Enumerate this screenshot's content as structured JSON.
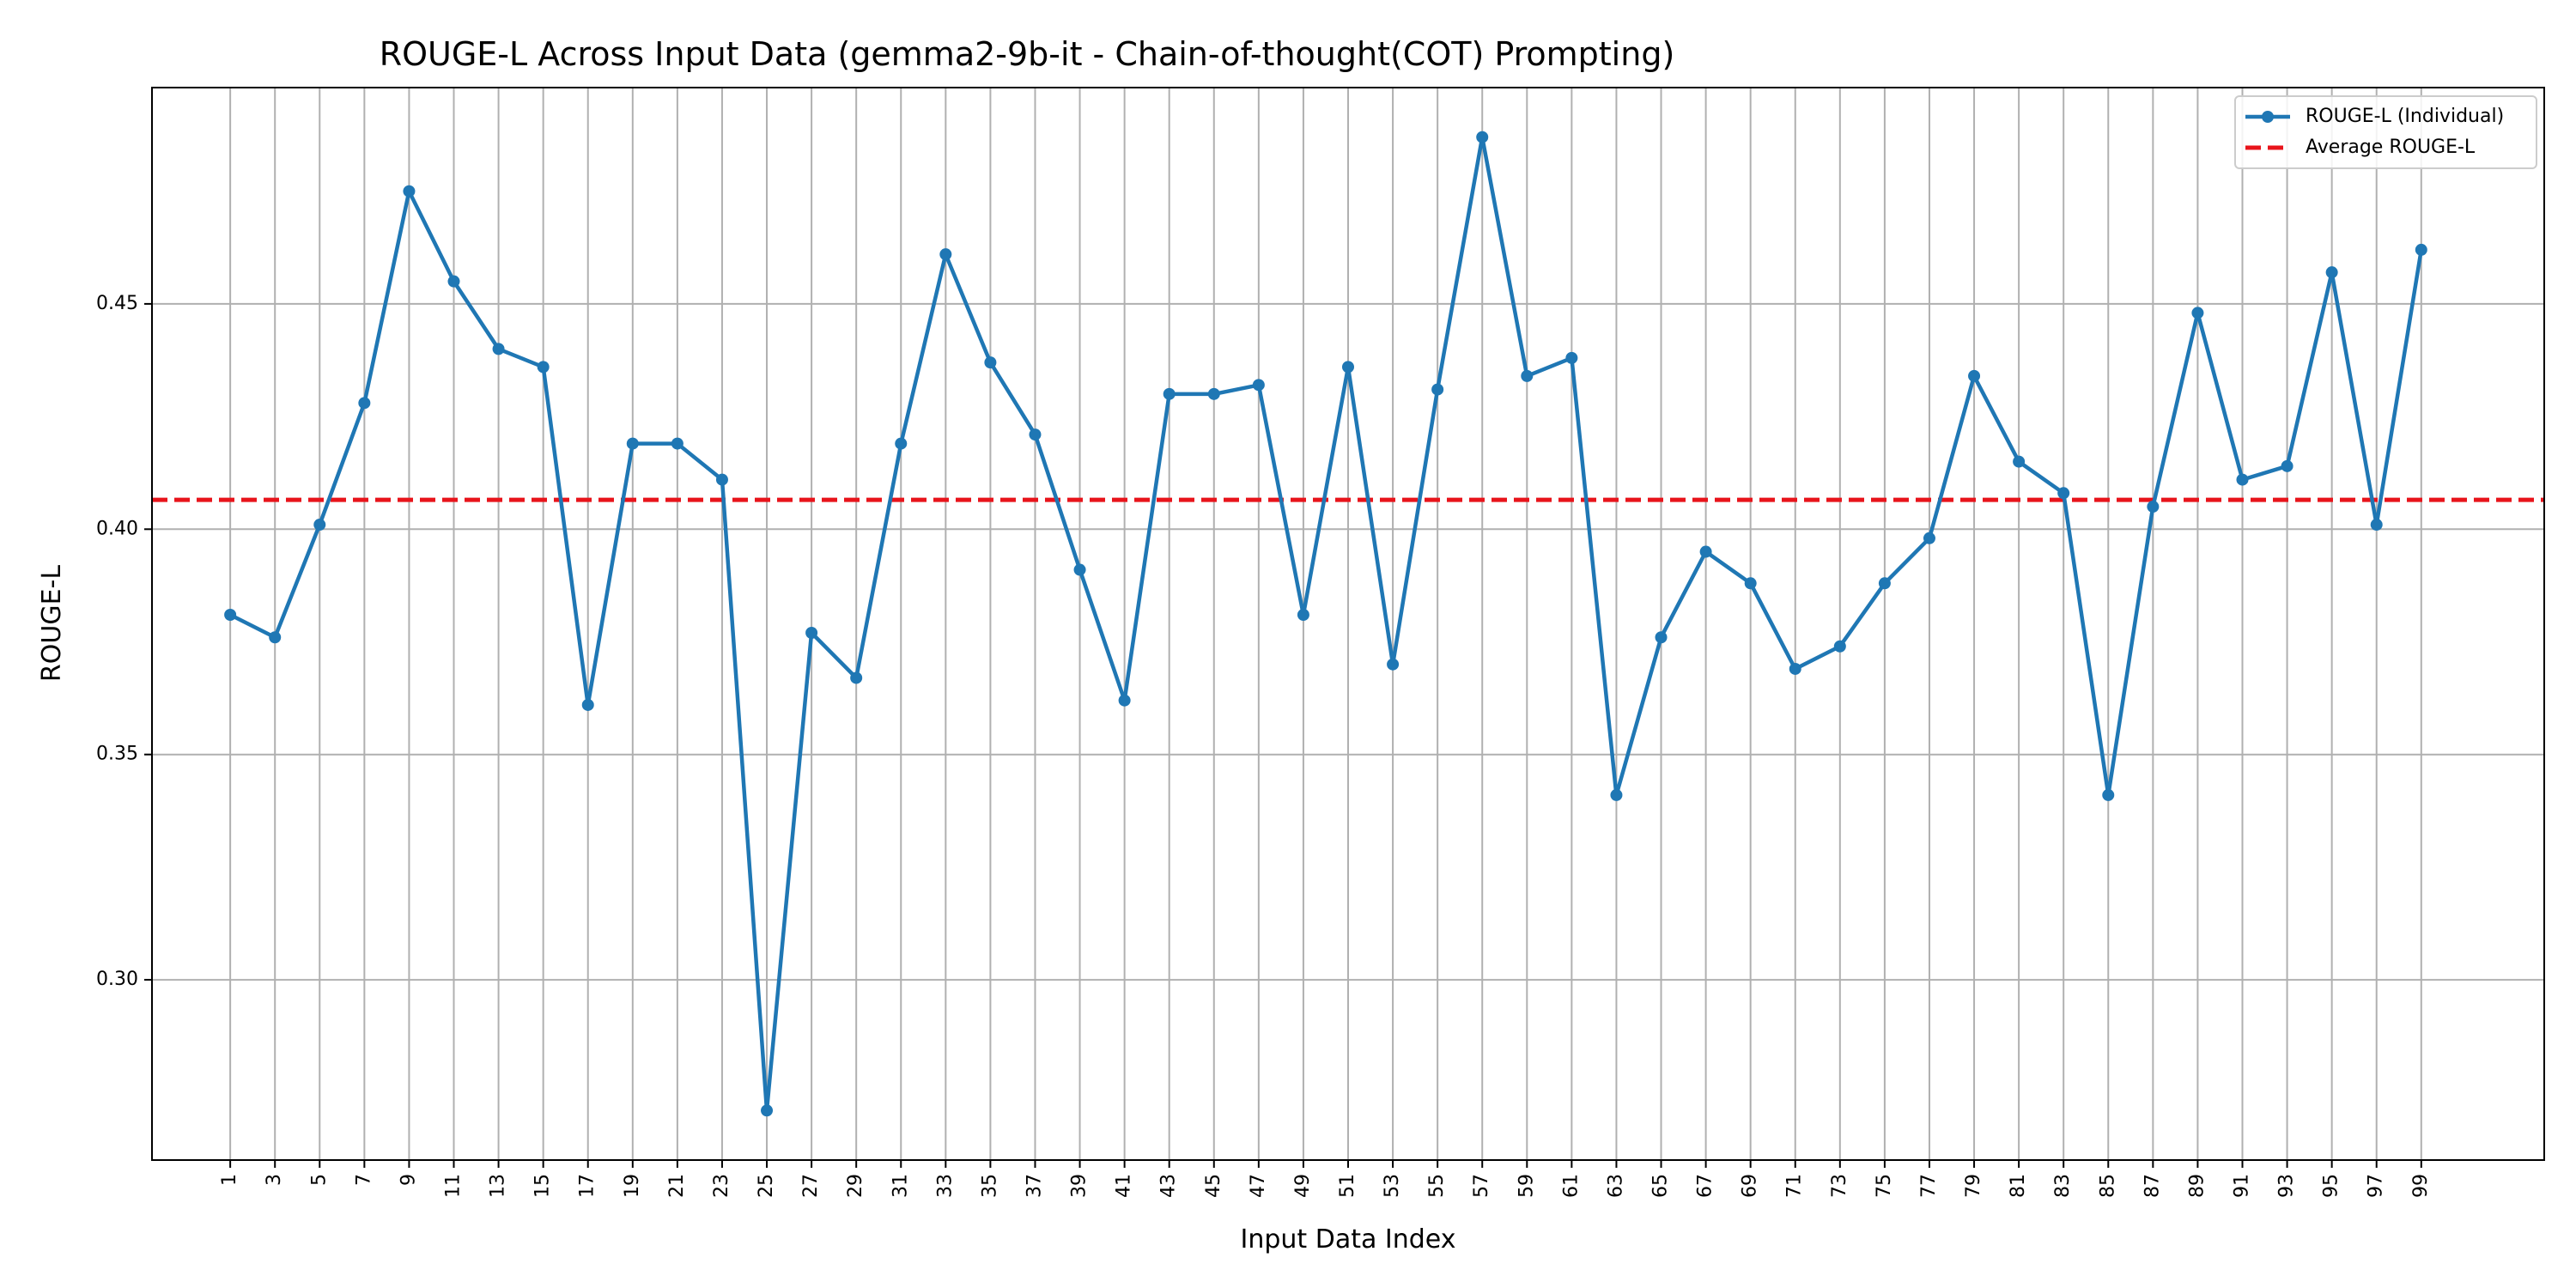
{
  "chart_data": {
    "type": "line",
    "title": "ROUGE-L Across Input Data (gemma2-9b-it - Chain-of-thought(COT) Prompting)",
    "xlabel": "Input Data Index",
    "ylabel": "ROUGE-L",
    "ylim": [
      0.26,
      0.498
    ],
    "xlim": [
      -2.5,
      104.5
    ],
    "x_ticks": [
      "1",
      "3",
      "5",
      "7",
      "9",
      "11",
      "13",
      "15",
      "17",
      "19",
      "21",
      "23",
      "25",
      "27",
      "29",
      "31",
      "33",
      "35",
      "37",
      "39",
      "41",
      "43",
      "45",
      "47",
      "49",
      "51",
      "53",
      "55",
      "57",
      "59",
      "61",
      "63",
      "65",
      "67",
      "69",
      "71",
      "73",
      "75",
      "77",
      "79",
      "81",
      "83",
      "85",
      "87",
      "89",
      "91",
      "93",
      "95",
      "97",
      "99"
    ],
    "y_ticks": [
      "0.30",
      "0.35",
      "0.40",
      "0.45"
    ],
    "grid": true,
    "legend_position": "top-right",
    "series": [
      {
        "name": "ROUGE-L (Individual)",
        "color": "#1f77b4",
        "style": "line-marker",
        "x": [
          1,
          3,
          5,
          7,
          9,
          11,
          13,
          15,
          17,
          19,
          21,
          23,
          25,
          27,
          29,
          31,
          33,
          35,
          37,
          39,
          41,
          43,
          45,
          47,
          49,
          51,
          53,
          55,
          57,
          59,
          61,
          63,
          65,
          67,
          69,
          71,
          73,
          75,
          77,
          79,
          81,
          83,
          85,
          87,
          89,
          91,
          93,
          95,
          97,
          99
        ],
        "values": [
          0.381,
          0.376,
          0.401,
          0.428,
          0.475,
          0.455,
          0.44,
          0.436,
          0.361,
          0.419,
          0.419,
          0.411,
          0.271,
          0.377,
          0.367,
          0.419,
          0.461,
          0.437,
          0.421,
          0.391,
          0.362,
          0.43,
          0.43,
          0.432,
          0.381,
          0.436,
          0.37,
          0.431,
          0.487,
          0.434,
          0.438,
          0.341,
          0.376,
          0.395,
          0.388,
          0.369,
          0.374,
          0.388,
          0.398,
          0.434,
          0.415,
          0.408,
          0.341,
          0.405,
          0.448,
          0.411,
          0.414,
          0.457,
          0.401,
          0.462
        ]
      },
      {
        "name": "Average ROUGE-L",
        "color": "#e8141b",
        "style": "dashed-hline",
        "value": 0.4065
      }
    ]
  }
}
